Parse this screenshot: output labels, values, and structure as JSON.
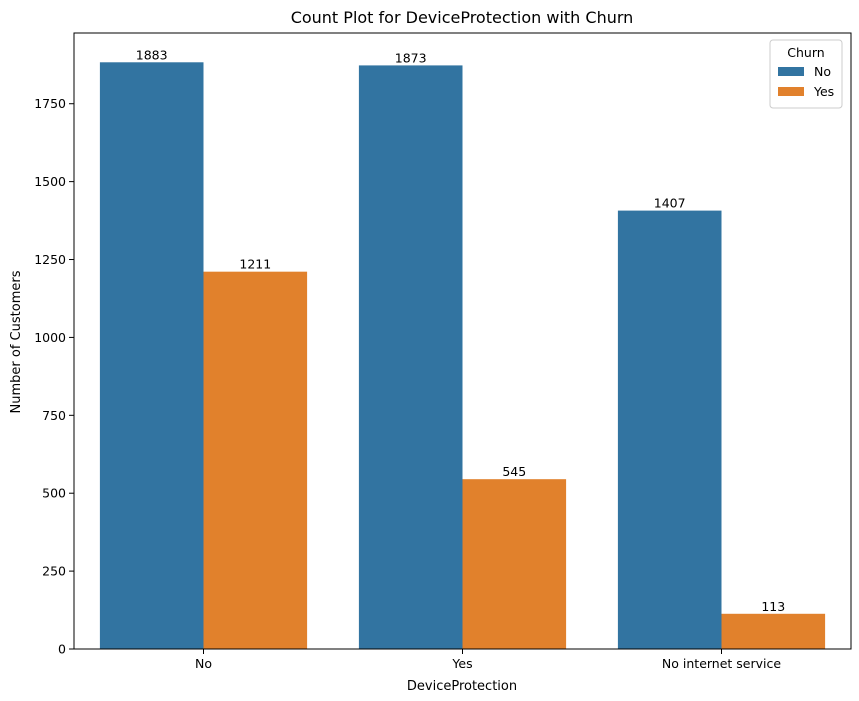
{
  "chart_data": {
    "type": "bar",
    "title": "Count Plot for DeviceProtection with Churn",
    "xlabel": "DeviceProtection",
    "ylabel": "Number of Customers",
    "categories": [
      "No",
      "Yes",
      "No internet service"
    ],
    "series": [
      {
        "name": "No",
        "color": "#3274a1",
        "values": [
          1883,
          1873,
          1407
        ]
      },
      {
        "name": "Yes",
        "color": "#e1812c",
        "values": [
          1211,
          545,
          113
        ]
      }
    ],
    "ylim": [
      0,
      1977
    ],
    "yticks": [
      0,
      250,
      500,
      750,
      1000,
      1250,
      1500,
      1750
    ],
    "ytick_labels": [
      "0",
      "250",
      "500",
      "750",
      "1000",
      "1250",
      "1500",
      "1750"
    ],
    "legend": {
      "title": "Churn",
      "placement": "top-right"
    },
    "grid": false
  }
}
